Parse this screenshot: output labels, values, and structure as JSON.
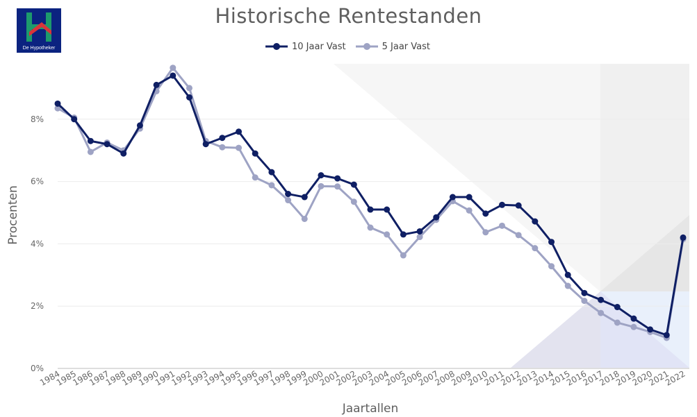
{
  "logo": {
    "name": "De Hypotheker",
    "colors": {
      "bg": "#0b2380",
      "letter": "#1d9a6c",
      "roof": "#d9343a"
    }
  },
  "chart_data": {
    "type": "line",
    "title": "Historische Rentestanden",
    "xlabel": "Jaartallen",
    "ylabel": "Procenten",
    "ylim": [
      0,
      10
    ],
    "yticks": [
      "0%",
      "2%",
      "4%",
      "6%",
      "8%"
    ],
    "ytick_values": [
      0,
      2,
      4,
      6,
      8
    ],
    "grid": true,
    "legend_position": "top-center",
    "categories": [
      "1984",
      "1985",
      "1986",
      "1987",
      "1988",
      "1989",
      "1990",
      "1991",
      "1992",
      "1993",
      "1994",
      "1995",
      "1996",
      "1997",
      "1998",
      "1999",
      "2000",
      "2001",
      "2002",
      "2003",
      "2004",
      "2005",
      "2006",
      "2007",
      "2008",
      "2009",
      "2010",
      "2011",
      "2012",
      "2013",
      "2014",
      "2015",
      "2016",
      "2017",
      "2018",
      "2019",
      "2020",
      "2021",
      "2022"
    ],
    "series": [
      {
        "name": "10 Jaar Vast",
        "color": "#0f1f64",
        "values": [
          8.5,
          8.0,
          7.3,
          7.2,
          6.9,
          7.8,
          9.1,
          9.4,
          8.7,
          7.2,
          7.4,
          7.6,
          6.9,
          6.3,
          5.6,
          5.5,
          6.2,
          6.1,
          5.9,
          5.1,
          5.1,
          4.3,
          4.4,
          4.85,
          5.5,
          5.5,
          4.97,
          5.25,
          5.23,
          4.72,
          4.06,
          3.0,
          2.42,
          2.2,
          1.97,
          1.6,
          1.25,
          1.07,
          4.2
        ]
      },
      {
        "name": "5 Jaar Vast",
        "color": "#9ea3c4",
        "values": [
          8.35,
          8.05,
          6.95,
          7.25,
          7.0,
          7.7,
          8.9,
          9.65,
          9.0,
          7.3,
          7.1,
          7.08,
          6.13,
          5.88,
          5.4,
          4.8,
          5.85,
          5.84,
          5.35,
          4.52,
          4.3,
          3.63,
          4.22,
          4.77,
          5.37,
          5.07,
          4.37,
          4.58,
          4.28,
          3.86,
          3.28,
          2.65,
          2.17,
          1.78,
          1.47,
          1.33,
          1.17,
          0.98,
          4.15
        ]
      }
    ]
  }
}
